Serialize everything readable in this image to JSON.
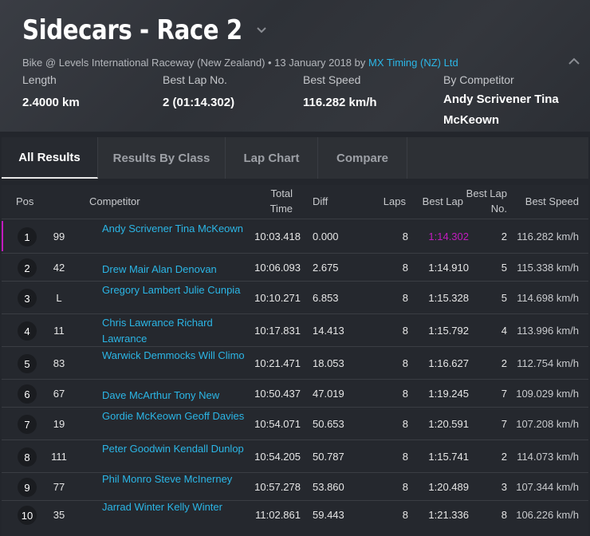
{
  "header": {
    "title": "Sidecars - Race 2",
    "subline_prefix": "Bike @ Levels International Raceway (New Zealand) • 13 January 2018 by ",
    "subline_link": "MX Timing (NZ) Ltd",
    "stats": [
      {
        "label": "Length",
        "value": "2.4000 km"
      },
      {
        "label": "Best Lap No.",
        "value": "2 (01:14.302)"
      },
      {
        "label": "Best Speed",
        "value": "116.282 km/h"
      },
      {
        "label": "By Competitor",
        "value": "Andy Scrivener Tina McKeown"
      }
    ]
  },
  "tabs": [
    "All Results",
    "Results By Class",
    "Lap Chart",
    "Compare"
  ],
  "columns": {
    "pos": "Pos",
    "competitor": "Competitor",
    "total_time": "Total Time",
    "diff": "Diff",
    "laps": "Laps",
    "best_lap": "Best Lap",
    "best_lap_no": "Best Lap No.",
    "best_speed": "Best Speed"
  },
  "rows": [
    {
      "pos": "1",
      "num": "99",
      "competitor": "Andy Scrivener Tina McKeown",
      "total": "10:03.418",
      "diff": "0.000",
      "laps": "8",
      "best_lap": "1:14.302",
      "best_lap_no": "2",
      "speed": "116.282 km/h",
      "fastest": true
    },
    {
      "pos": "2",
      "num": "42",
      "competitor": "Drew Mair Alan Denovan",
      "total": "10:06.093",
      "diff": "2.675",
      "laps": "8",
      "best_lap": "1:14.910",
      "best_lap_no": "5",
      "speed": "115.338 km/h"
    },
    {
      "pos": "3",
      "num": "L",
      "competitor": "Gregory Lambert Julie Cunpia",
      "total": "10:10.271",
      "diff": "6.853",
      "laps": "8",
      "best_lap": "1:15.328",
      "best_lap_no": "5",
      "speed": "114.698 km/h"
    },
    {
      "pos": "4",
      "num": "11",
      "competitor": "Chris Lawrance Richard Lawrance",
      "total": "10:17.831",
      "diff": "14.413",
      "laps": "8",
      "best_lap": "1:15.792",
      "best_lap_no": "4",
      "speed": "113.996 km/h"
    },
    {
      "pos": "5",
      "num": "83",
      "competitor": "Warwick Demmocks Will Climo",
      "total": "10:21.471",
      "diff": "18.053",
      "laps": "8",
      "best_lap": "1:16.627",
      "best_lap_no": "2",
      "speed": "112.754 km/h"
    },
    {
      "pos": "6",
      "num": "67",
      "competitor": "Dave McArthur Tony New",
      "total": "10:50.437",
      "diff": "47.019",
      "laps": "8",
      "best_lap": "1:19.245",
      "best_lap_no": "7",
      "speed": "109.029 km/h"
    },
    {
      "pos": "7",
      "num": "19",
      "competitor": "Gordie McKeown Geoff Davies",
      "total": "10:54.071",
      "diff": "50.653",
      "laps": "8",
      "best_lap": "1:20.591",
      "best_lap_no": "7",
      "speed": "107.208 km/h"
    },
    {
      "pos": "8",
      "num": "111",
      "competitor": "Peter Goodwin Kendall Dunlop",
      "total": "10:54.205",
      "diff": "50.787",
      "laps": "8",
      "best_lap": "1:15.741",
      "best_lap_no": "2",
      "speed": "114.073 km/h"
    },
    {
      "pos": "9",
      "num": "77",
      "competitor": "Phil Monro Steve McInerney",
      "total": "10:57.278",
      "diff": "53.860",
      "laps": "8",
      "best_lap": "1:20.489",
      "best_lap_no": "3",
      "speed": "107.344 km/h"
    },
    {
      "pos": "10",
      "num": "35",
      "competitor": "Jarrad Winter Kelly Winter",
      "total": "11:02.861",
      "diff": "59.443",
      "laps": "8",
      "best_lap": "1:21.336",
      "best_lap_no": "8",
      "speed": "106.226 km/h"
    }
  ]
}
